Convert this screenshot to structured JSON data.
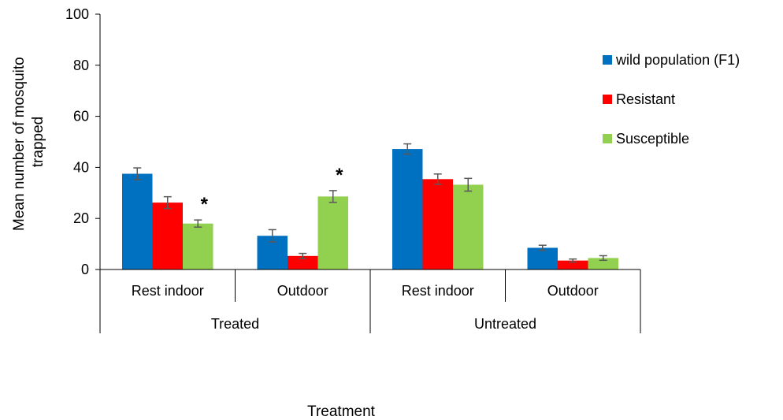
{
  "chart_data": {
    "type": "bar",
    "title": "",
    "xlabel": "Treatment",
    "ylabel_lines": [
      "Mean number of mosquito",
      "trapped"
    ],
    "ylim": [
      0,
      100
    ],
    "yticks": [
      0,
      20,
      40,
      60,
      80,
      100
    ],
    "grid": false,
    "legend_position": "right",
    "categories": [
      "Rest indoor",
      "Outdoor",
      "Rest indoor",
      "Outdoor"
    ],
    "groups": [
      {
        "label": "Treated",
        "categories": [
          0,
          1
        ]
      },
      {
        "label": "Untreated",
        "categories": [
          2,
          3
        ]
      }
    ],
    "series": [
      {
        "name": "wild population (F1)",
        "color": "#0070C0",
        "values": [
          37.5,
          13.2,
          47.2,
          8.5
        ],
        "errors": [
          2.3,
          2.4,
          2.0,
          1.0
        ]
      },
      {
        "name": "Resistant",
        "color": "#FF0000",
        "values": [
          26.2,
          5.3,
          35.4,
          3.5
        ],
        "errors": [
          2.3,
          1.0,
          2.0,
          0.6
        ]
      },
      {
        "name": "Susceptible",
        "color": "#92D050",
        "values": [
          18.0,
          28.6,
          33.2,
          4.5
        ],
        "errors": [
          1.4,
          2.3,
          2.5,
          0.9
        ]
      }
    ],
    "annotations": [
      {
        "text": "*",
        "series": 2,
        "category": 0
      },
      {
        "text": "*",
        "series": 2,
        "category": 1
      }
    ]
  }
}
